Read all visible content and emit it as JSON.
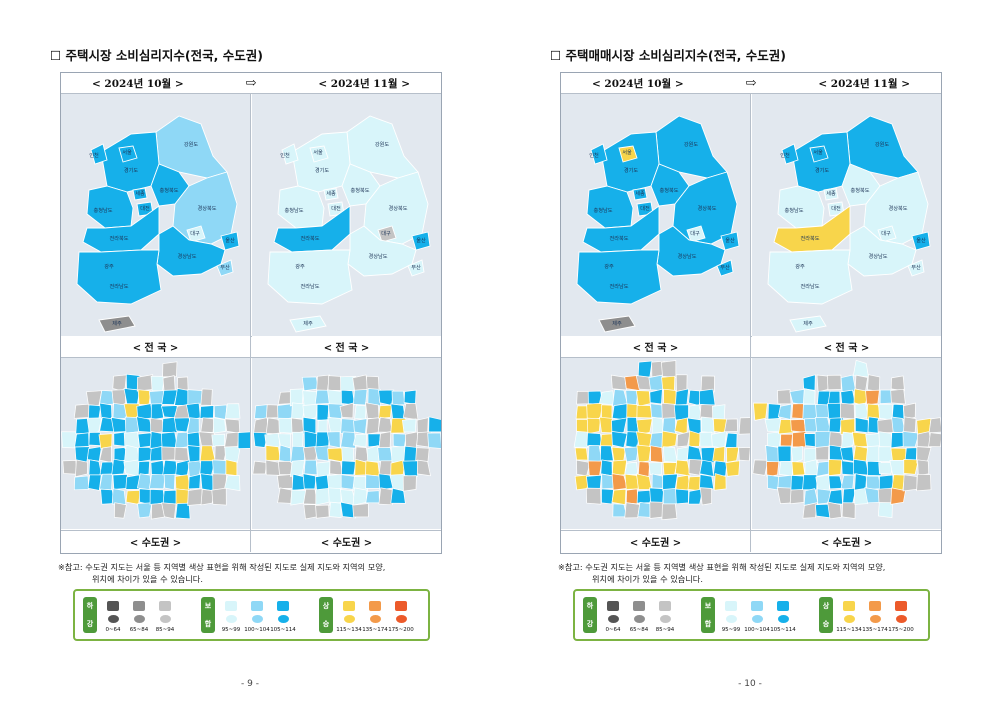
{
  "colors": {
    "decline_dark": "#555555",
    "decline_mid": "#8e8e8e",
    "decline_light": "#c4c4c4",
    "stable_light": "#d8f5fa",
    "stable_mid": "#8fd8f6",
    "stable_dark": "#16b0ea",
    "rise_light": "#f8d54b",
    "rise_mid": "#f39a4a",
    "rise_dark": "#ec5a2a",
    "legend_border": "#7cb342"
  },
  "pages": [
    {
      "title": "☐ 주택시장 소비심리지수(전국, 수도권)",
      "header_left": "< 2024년 10월 >",
      "header_arrow": "⇨",
      "header_right": "< 2024년 11월 >",
      "label_national_left": "< 전  국 >",
      "label_national_right": "< 전  국 >",
      "label_capital_left": "< 수도권 >",
      "label_capital_right": "< 수도권 >",
      "note_line1": "※참고: 수도권 지도는 서울 등 지역별 색상 표현을 위해 작성된 지도로 실제 지도와 지역의 모양,",
      "note_line2": "위치에 차이가 있을 수 있습니다.",
      "page_number": "- 9 -"
    },
    {
      "title": "☐ 주택매매시장 소비심리지수(전국, 수도권)",
      "header_left": "< 2024년 10월 >",
      "header_arrow": "⇨",
      "header_right": "< 2024년 11월 >",
      "label_national_left": "< 전  국 >",
      "label_national_right": "< 전  국 >",
      "label_capital_left": "< 수도권 >",
      "label_capital_right": "< 수도권 >",
      "note_line1": "※참고: 수도권 지도는 서울 등 지역별 색상 표현을 위해 작성된 지도로 실제 지도와 지역의 모양,",
      "note_line2": "위치에 차이가 있을 수 있습니다.",
      "page_number": "- 10 -"
    }
  ],
  "legend": {
    "decline": {
      "label_top": "하",
      "label_bottom": "강"
    },
    "stable": {
      "label_top": "보",
      "label_bottom": "합"
    },
    "rise": {
      "label_top": "상",
      "label_bottom": "승"
    },
    "ranges": [
      "0~64",
      "65~84",
      "85~94",
      "95~99",
      "100~104",
      "105~114",
      "115~134",
      "135~174",
      "175~200"
    ]
  },
  "regions": {
    "incheon": "인천",
    "seoul": "서울",
    "gyeonggi": "경기도",
    "gangwon": "강원도",
    "sejong": "세종",
    "chungbuk": "충청북도",
    "chungnam": "충청남도",
    "daejeon": "대전",
    "gyeongbuk": "경상북도",
    "daegu": "대구",
    "jeonbuk": "전라북도",
    "ulsan": "울산",
    "gyeongnam": "경상남도",
    "busan": "부산",
    "gwangju": "광주",
    "jeonnam": "전라남도",
    "jeju": "제주"
  },
  "maps": {
    "p0_oct": {
      "seoul": "stable_dark",
      "incheon": "stable_dark",
      "gyeonggi": "stable_dark",
      "gangwon": "stable_mid",
      "chungbuk": "stable_dark",
      "chungnam": "stable_dark",
      "sejong": "stable_dark",
      "daejeon": "stable_dark",
      "gyeongbuk": "stable_mid",
      "daegu": "stable_light",
      "jeonbuk": "stable_dark",
      "jeonnam": "stable_dark",
      "gwangju": "stable_dark",
      "gyeongnam": "stable_dark",
      "ulsan": "stable_dark",
      "busan": "stable_mid",
      "jeju": "decline_mid"
    },
    "p0_nov": {
      "seoul": "stable_light",
      "incheon": "stable_light",
      "gyeonggi": "stable_light",
      "gangwon": "stable_light",
      "chungbuk": "stable_light",
      "chungnam": "stable_light",
      "sejong": "stable_light",
      "daejeon": "stable_light",
      "gyeongbuk": "stable_light",
      "daegu": "decline_light",
      "jeonbuk": "stable_dark",
      "jeonnam": "stable_light",
      "gwangju": "stable_light",
      "gyeongnam": "stable_light",
      "ulsan": "stable_dark",
      "busan": "stable_light",
      "jeju": "stable_light"
    },
    "p1_oct": {
      "seoul": "rise_light",
      "incheon": "stable_dark",
      "gyeonggi": "stable_dark",
      "gangwon": "stable_dark",
      "chungbuk": "stable_dark",
      "chungnam": "stable_dark",
      "sejong": "stable_dark",
      "daejeon": "stable_dark",
      "gyeongbuk": "stable_dark",
      "daegu": "stable_light",
      "jeonbuk": "stable_dark",
      "jeonnam": "stable_dark",
      "gwangju": "stable_dark",
      "gyeongnam": "stable_dark",
      "ulsan": "stable_dark",
      "busan": "stable_dark",
      "jeju": "decline_mid"
    },
    "p1_nov": {
      "seoul": "stable_dark",
      "incheon": "stable_dark",
      "gyeonggi": "stable_dark",
      "gangwon": "stable_dark",
      "chungbuk": "stable_light",
      "chungnam": "stable_light",
      "sejong": "stable_light",
      "daejeon": "stable_light",
      "gyeongbuk": "stable_light",
      "daegu": "stable_light",
      "jeonbuk": "rise_light",
      "jeonnam": "stable_light",
      "gwangju": "stable_light",
      "gyeongnam": "stable_light",
      "ulsan": "stable_dark",
      "busan": "stable_light",
      "jeju": "stable_light"
    }
  }
}
